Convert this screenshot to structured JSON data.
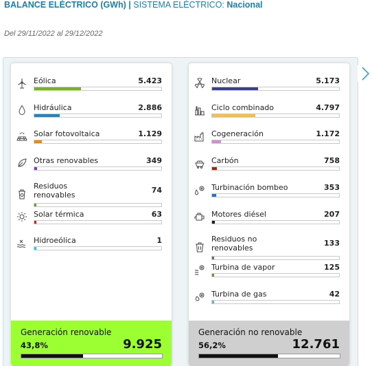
{
  "header": {
    "title_bold": "BALANCE ELÉCTRICO (GWh)",
    "separator": "|",
    "system_label": "SISTEMA ELÉCTRICO:",
    "system_value": "Nacional"
  },
  "period": "Del 29/11/2022 al 29/12/2022",
  "renewable": {
    "items": [
      {
        "name": "Eólica",
        "value": "5.423",
        "fraction": 0.37,
        "color": "#74b41f",
        "icon": "wind-turbine-icon"
      },
      {
        "name": "Hidráulica",
        "value": "2.886",
        "fraction": 0.2,
        "color": "#1c86c5",
        "icon": "water-drop-icon"
      },
      {
        "name": "Solar fotovoltaica",
        "value": "1.129",
        "fraction": 0.06,
        "color": "#e58a15",
        "icon": "solar-panel-icon"
      },
      {
        "name": "Otras renovables",
        "value": "349",
        "fraction": 0.02,
        "color": "#8c3aa7",
        "icon": "leaf-icon"
      },
      {
        "name": "Residuos renovables",
        "value": "74",
        "fraction": 0.0,
        "color": "#6b9a4a",
        "icon": "recycle-bin-icon"
      },
      {
        "name": "Solar térmica",
        "value": "63",
        "fraction": 0.01,
        "color": "#d8201f",
        "icon": "sun-icon"
      },
      {
        "name": "Hidroeólica",
        "value": "1",
        "fraction": 0.005,
        "color": "#35c6d8",
        "icon": "hydro-wind-icon"
      }
    ],
    "total_label": "Generación renovable",
    "total_percent": "43,8%",
    "total_value": "9.925",
    "total_fraction": 0.438,
    "bg_color": "#9cff32"
  },
  "nonrenewable": {
    "items": [
      {
        "name": "Nuclear",
        "value": "5.173",
        "fraction": 0.36,
        "color": "#3a3f92",
        "icon": "nuclear-icon"
      },
      {
        "name": "Ciclo combinado",
        "value": "4.797",
        "fraction": 0.34,
        "color": "#fbbd45",
        "icon": "power-plant-icon"
      },
      {
        "name": "Cogeneración",
        "value": "1.172",
        "fraction": 0.07,
        "color": "#cf8fd0",
        "icon": "factory-icon"
      },
      {
        "name": "Carbón",
        "value": "758",
        "fraction": 0.04,
        "color": "#a0280e",
        "icon": "coal-cart-icon"
      },
      {
        "name": "Turbinación bombeo",
        "value": "353",
        "fraction": 0.03,
        "color": "#1c74ce",
        "icon": "pumped-storage-icon"
      },
      {
        "name": "Motores diésel",
        "value": "207",
        "fraction": 0.02,
        "color": "#1a1a1a",
        "icon": "diesel-engine-icon"
      },
      {
        "name": "Residuos no renovables",
        "value": "133",
        "fraction": 0.01,
        "color": "#6b6b6b",
        "icon": "waste-bin-icon"
      },
      {
        "name": "Turbina de vapor",
        "value": "125",
        "fraction": 0.01,
        "color": "#a08317",
        "icon": "steam-turbine-icon"
      },
      {
        "name": "Turbina de gas",
        "value": "42",
        "fraction": 0.01,
        "color": "#35c6d8",
        "icon": "gas-turbine-icon"
      }
    ],
    "total_label": "Generación no renovable",
    "total_percent": "56,2%",
    "total_value": "12.761",
    "total_fraction": 0.562,
    "bg_color": "#cfcfcf"
  }
}
